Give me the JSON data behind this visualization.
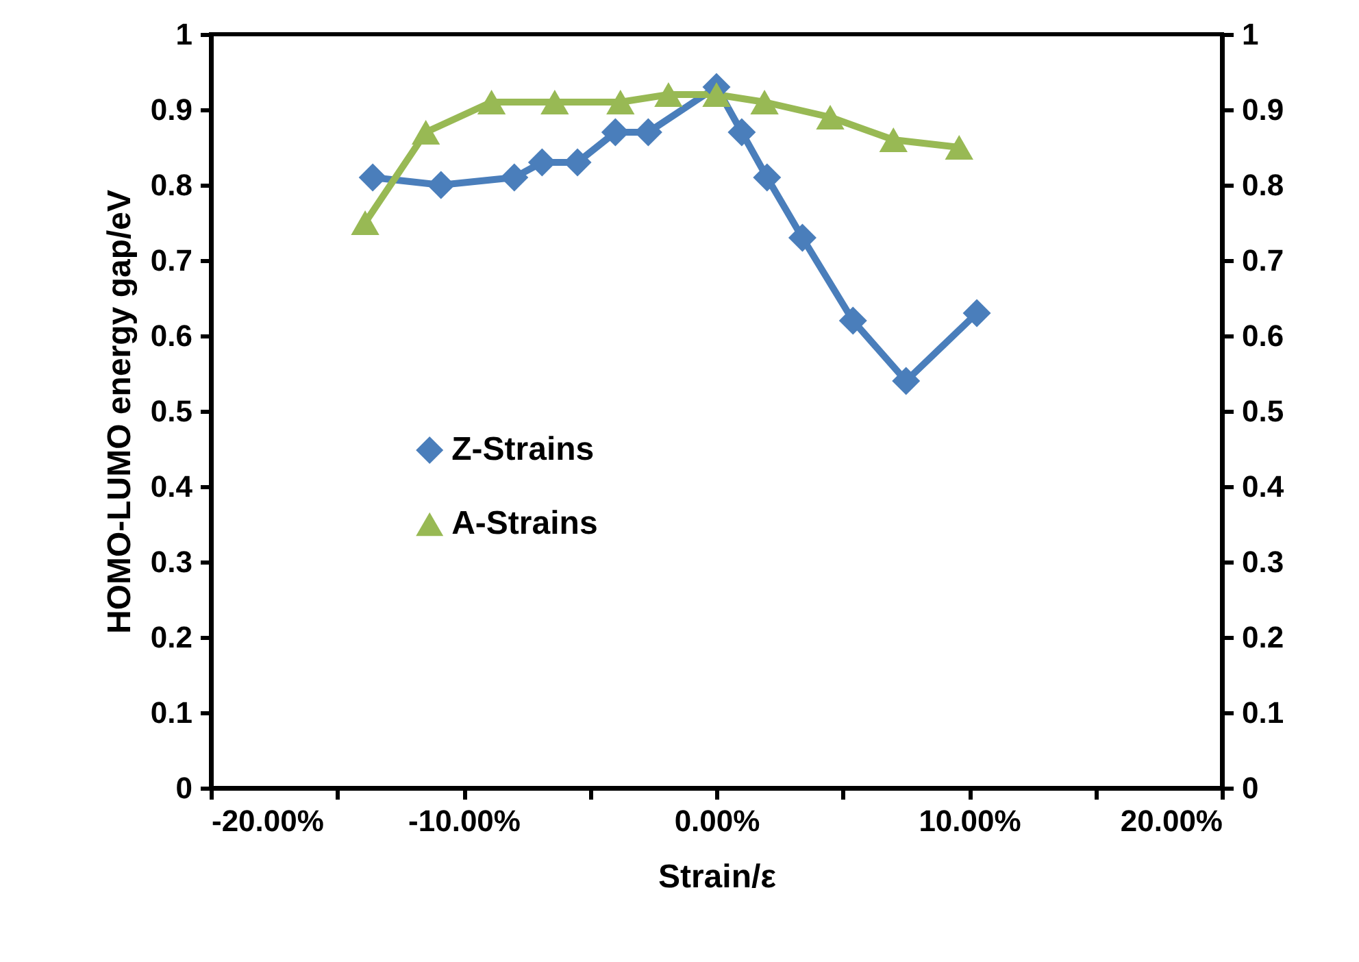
{
  "chart_data": {
    "type": "line",
    "xlabel": "Strain/ε",
    "ylabel": "HOMO-LUMO energy gap/eV",
    "xlim": [
      -20,
      20
    ],
    "xticks": [
      {
        "value": -20,
        "label": "-20.00%"
      },
      {
        "value": -15,
        "label": null
      },
      {
        "value": -10,
        "label": "-10.00%"
      },
      {
        "value": -5,
        "label": null
      },
      {
        "value": 0,
        "label": "0.00%"
      },
      {
        "value": 5,
        "label": null
      },
      {
        "value": 10,
        "label": "10.00%"
      },
      {
        "value": 15,
        "label": null
      },
      {
        "value": 20,
        "label": "20.00%"
      }
    ],
    "ylim": [
      0,
      1
    ],
    "yticks": [
      0,
      0.1,
      0.2,
      0.3,
      0.4,
      0.5,
      0.6,
      0.7,
      0.8,
      0.9,
      1
    ],
    "y2lim": [
      0,
      1
    ],
    "y2ticks": [
      0,
      0.1,
      0.2,
      0.3,
      0.4,
      0.5,
      0.6,
      0.7,
      0.8,
      0.9,
      1
    ],
    "grid": false,
    "legend": "left",
    "series": [
      {
        "name": "Z-Strains",
        "color": "#4a7ebb",
        "marker": "diamond",
        "x": [
          -13.6,
          -10.9,
          -8.0,
          -6.9,
          -5.5,
          -4.0,
          -2.7,
          0.0,
          1.0,
          2.0,
          3.4,
          5.4,
          7.5,
          10.3
        ],
        "values": [
          0.81,
          0.8,
          0.81,
          0.83,
          0.83,
          0.87,
          0.87,
          0.93,
          0.87,
          0.81,
          0.73,
          0.62,
          0.54,
          0.63
        ]
      },
      {
        "name": "A-Strains",
        "color": "#98b954",
        "marker": "triangle",
        "x": [
          -13.9,
          -11.5,
          -8.9,
          -6.4,
          -3.8,
          -1.9,
          0.0,
          1.9,
          4.5,
          7.0,
          9.6
        ],
        "values": [
          0.75,
          0.87,
          0.91,
          0.91,
          0.91,
          0.92,
          0.92,
          0.91,
          0.89,
          0.86,
          0.85
        ]
      }
    ]
  }
}
